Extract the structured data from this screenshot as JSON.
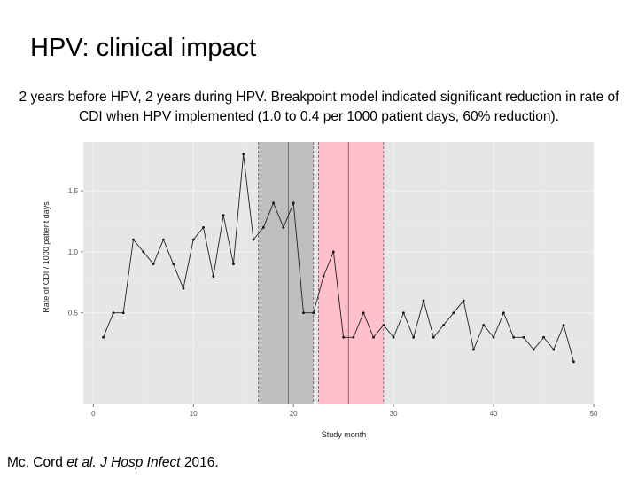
{
  "slide": {
    "title": "HPV: clinical impact",
    "subtitle": "2 years before HPV, 2 years during HPV. Breakpoint model indicated significant reduction in rate of CDI when HPV implemented (1.0 to 0.4 per 1000 patient days, 60% reduction).",
    "citation_author": "Mc. Cord ",
    "citation_etal": "et al. J Hosp Infect",
    "citation_year": " 2016."
  },
  "chart_data": {
    "type": "line",
    "title": "",
    "xlabel": "Study month",
    "ylabel": "Rate of CDI / 1000 patient days",
    "xlim": [
      -1,
      50
    ],
    "ylim": [
      -0.25,
      1.9
    ],
    "xticks": [
      0,
      10,
      20,
      30,
      40,
      50
    ],
    "xtick_labels": [
      "0",
      "10",
      "20",
      "30",
      "40",
      "50"
    ],
    "yticks": [
      0.5,
      1.0,
      1.5
    ],
    "ytick_labels": [
      "0.5",
      "1.0",
      "1.5"
    ],
    "grid": true,
    "shaded_regions": [
      {
        "x0": 16.5,
        "x1": 22,
        "color": "#bfbfbf"
      },
      {
        "x0": 22.5,
        "x1": 29,
        "color": "#ffc0cb"
      }
    ],
    "vertical_lines": [
      {
        "x": 16.5,
        "style": "dashed",
        "color": "#7a5a7a"
      },
      {
        "x": 19.5,
        "style": "solid",
        "color": "#666666"
      },
      {
        "x": 22,
        "style": "dashed",
        "color": "#7a5a7a"
      },
      {
        "x": 22.5,
        "style": "dashed",
        "color": "#7a5a7a"
      },
      {
        "x": 25.5,
        "style": "solid",
        "color": "#666666"
      },
      {
        "x": 29,
        "style": "dashed",
        "color": "#7a5a7a"
      }
    ],
    "series": [
      {
        "x": [
          1,
          2,
          3,
          4,
          5,
          6,
          7,
          8,
          9,
          10,
          11,
          12,
          13,
          14,
          15,
          16,
          17,
          18,
          19,
          20,
          21,
          22,
          23,
          24,
          25,
          26,
          27,
          28,
          29,
          30,
          31,
          32,
          33,
          34,
          35,
          36,
          37,
          38,
          39,
          40,
          41,
          42,
          43,
          44,
          45,
          46,
          47,
          48
        ],
        "values": [
          0.3,
          0.5,
          0.5,
          1.1,
          1.0,
          0.9,
          1.1,
          0.9,
          0.7,
          1.1,
          1.2,
          0.8,
          1.3,
          0.9,
          1.8,
          1.1,
          1.2,
          1.4,
          1.2,
          1.4,
          0.5,
          0.5,
          0.8,
          1.0,
          0.3,
          0.3,
          0.5,
          0.3,
          0.4,
          0.3,
          0.5,
          0.3,
          0.6,
          0.3,
          0.4,
          0.5,
          0.6,
          0.2,
          0.4,
          0.3,
          0.5,
          0.3,
          0.3,
          0.2,
          0.3,
          0.2,
          0.4,
          0.1
        ]
      }
    ]
  }
}
